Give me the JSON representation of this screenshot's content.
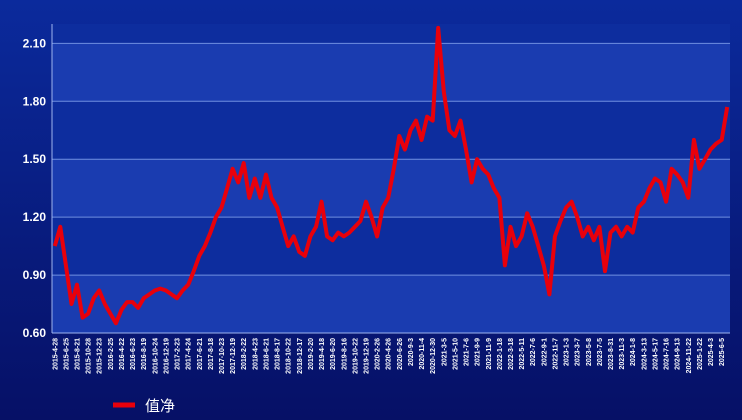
{
  "chart_data": {
    "type": "line",
    "categories": [
      "2015-4-28",
      null,
      "2015-6-25",
      null,
      "2015-8-21",
      null,
      "2015-10-28",
      null,
      "2015-12-23",
      null,
      "2016-2-25",
      null,
      "2016-4-22",
      null,
      "2016-6-23",
      null,
      "2016-8-19",
      null,
      "2016-10-24",
      null,
      "2016-12-19",
      null,
      "2017-2-23",
      null,
      "2017-4-24",
      null,
      "2017-6-21",
      null,
      "2017-8-18",
      null,
      "2017-10-23",
      null,
      "2017-12-19",
      null,
      "2018-2-22",
      null,
      "2018-4-23",
      null,
      "2018-6-21",
      null,
      "2018-8-17",
      null,
      "2018-10-22",
      null,
      "2018-12-17",
      null,
      "2019-2-20",
      null,
      "2019-4-18",
      null,
      "2019-6-20",
      null,
      "2019-8-16",
      null,
      "2019-10-22",
      null,
      "2019-12-19",
      null,
      "2020-2-26",
      null,
      "2020-4-26",
      null,
      "2020-6-26",
      null,
      "2020-9-3",
      null,
      "2020-11-4",
      null,
      "2020-12-30",
      null,
      "2021-3-5",
      null,
      "2021-5-10",
      null,
      "2021-7-6",
      null,
      "2021-9-9",
      null,
      "2021-11-9",
      null,
      "2022-1-18",
      null,
      "2022-3-18",
      null,
      "2022-5-11",
      null,
      "2022-7-6",
      null,
      "2022-9-1",
      null,
      "2022-11-7",
      null,
      "2023-1-3",
      null,
      "2023-3-7",
      null,
      "2023-5-8",
      null,
      "2023-7-5",
      null,
      "2023-8-31",
      null,
      "2023-11-3",
      null,
      "2024-1-8",
      null,
      "2024-3-13",
      null,
      "2024-5-17",
      null,
      "2024-7-16",
      null,
      "2024-9-13",
      null,
      "2024-11-22",
      null,
      "2025-1-22",
      null,
      "2025-4-3",
      null,
      "2025-6-5",
      null
    ],
    "series": [
      {
        "name": "值净",
        "color": "#e8000b",
        "values": [
          1.05,
          1.15,
          0.95,
          0.75,
          0.85,
          0.68,
          0.7,
          0.78,
          0.82,
          0.75,
          0.7,
          0.65,
          0.72,
          0.76,
          0.76,
          0.73,
          0.78,
          0.8,
          0.82,
          0.83,
          0.82,
          0.8,
          0.78,
          0.82,
          0.85,
          0.92,
          1.0,
          1.05,
          1.12,
          1.2,
          1.25,
          1.35,
          1.45,
          1.38,
          1.48,
          1.3,
          1.4,
          1.3,
          1.42,
          1.3,
          1.25,
          1.15,
          1.05,
          1.1,
          1.02,
          1.0,
          1.1,
          1.15,
          1.28,
          1.1,
          1.08,
          1.12,
          1.1,
          1.12,
          1.15,
          1.18,
          1.28,
          1.2,
          1.1,
          1.25,
          1.3,
          1.45,
          1.62,
          1.55,
          1.65,
          1.7,
          1.6,
          1.72,
          1.7,
          2.18,
          1.85,
          1.65,
          1.62,
          1.7,
          1.55,
          1.38,
          1.5,
          1.45,
          1.42,
          1.35,
          1.3,
          0.95,
          1.15,
          1.05,
          1.1,
          1.22,
          1.15,
          1.05,
          0.95,
          0.8,
          1.1,
          1.18,
          1.25,
          1.28,
          1.2,
          1.1,
          1.15,
          1.08,
          1.15,
          0.92,
          1.12,
          1.15,
          1.1,
          1.15,
          1.12,
          1.25,
          1.28,
          1.35,
          1.4,
          1.38,
          1.28,
          1.45,
          1.42,
          1.38,
          1.3,
          1.6,
          1.45,
          1.5,
          1.55,
          1.58,
          1.6,
          1.77
        ]
      }
    ],
    "ylim": [
      0.6,
      2.2
    ],
    "yticks": [
      {
        "value": 0.6,
        "label": "0.60"
      },
      {
        "value": 0.9,
        "label": "0.90"
      },
      {
        "value": 1.2,
        "label": "1.20"
      },
      {
        "value": 1.5,
        "label": "1.50"
      },
      {
        "value": 1.8,
        "label": "1.80"
      },
      {
        "value": 2.1,
        "label": "2.10"
      }
    ],
    "grid": true
  }
}
